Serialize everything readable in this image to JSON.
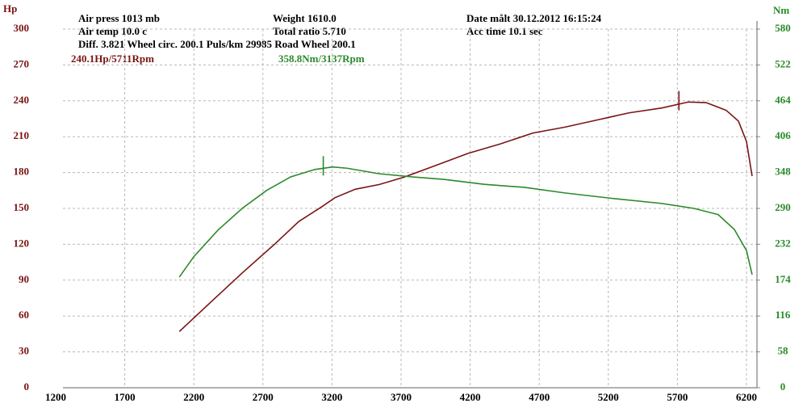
{
  "chart_data": {
    "type": "line",
    "y_label": "Hp",
    "y2_label": "Nm",
    "info": [
      "Air press  1013 mb",
      "Weight  1610.0",
      "Date målt 30.12.2012 16:15:24",
      "Air temp  10.0 c",
      "Total ratio 5.710",
      "Acc time  10.1 sec",
      "Diff.   3.821  Wheel circ. 200.1  Puls/km  29985  Road Wheel 200.1"
    ],
    "xlim": [
      1200,
      6276
    ],
    "xticks": [
      1200,
      1700,
      2200,
      2700,
      3200,
      3700,
      4200,
      4700,
      5200,
      5700,
      6200
    ],
    "ylim": [
      0,
      300
    ],
    "yticks": [
      0,
      30,
      60,
      90,
      120,
      150,
      180,
      210,
      240,
      270,
      300
    ],
    "y2lim": [
      0,
      580
    ],
    "y2ticks": [
      0,
      58,
      116,
      174,
      232,
      290,
      348,
      406,
      464,
      522,
      580
    ],
    "grid": true,
    "series": [
      {
        "name": "Hp",
        "color": "#7a1414",
        "axis": "y",
        "x": [
          2095,
          2317,
          2550,
          2784,
          2959,
          3134,
          3222,
          3368,
          3543,
          3718,
          3952,
          4185,
          4419,
          4653,
          4886,
          5120,
          5353,
          5587,
          5780,
          5908,
          6054,
          6142,
          6200,
          6241
        ],
        "values": [
          47,
          71,
          96,
          120,
          139,
          152,
          159,
          166,
          170,
          176,
          186,
          196,
          204,
          213,
          218,
          224,
          230,
          234,
          239,
          238.5,
          232,
          223,
          206,
          177
        ],
        "peak": {
          "x": 5711,
          "value": 240.1,
          "label": "240.1Hp/5711Rpm"
        }
      },
      {
        "name": "Nm",
        "color": "#2a8a2a",
        "axis": "y2",
        "x": [
          2095,
          2200,
          2375,
          2550,
          2726,
          2901,
          3076,
          3204,
          3309,
          3543,
          3777,
          4010,
          4302,
          4594,
          4886,
          5236,
          5587,
          5820,
          5995,
          6112,
          6200,
          6241
        ],
        "values": [
          179,
          212,
          255,
          290,
          319,
          341,
          353,
          357,
          355,
          346,
          341,
          337,
          329,
          324,
          315,
          306,
          298,
          290,
          280,
          256,
          222,
          183
        ],
        "peak": {
          "x": 3137,
          "value": 358.8,
          "label": "358.8Nm/3137Rpm"
        }
      }
    ]
  }
}
